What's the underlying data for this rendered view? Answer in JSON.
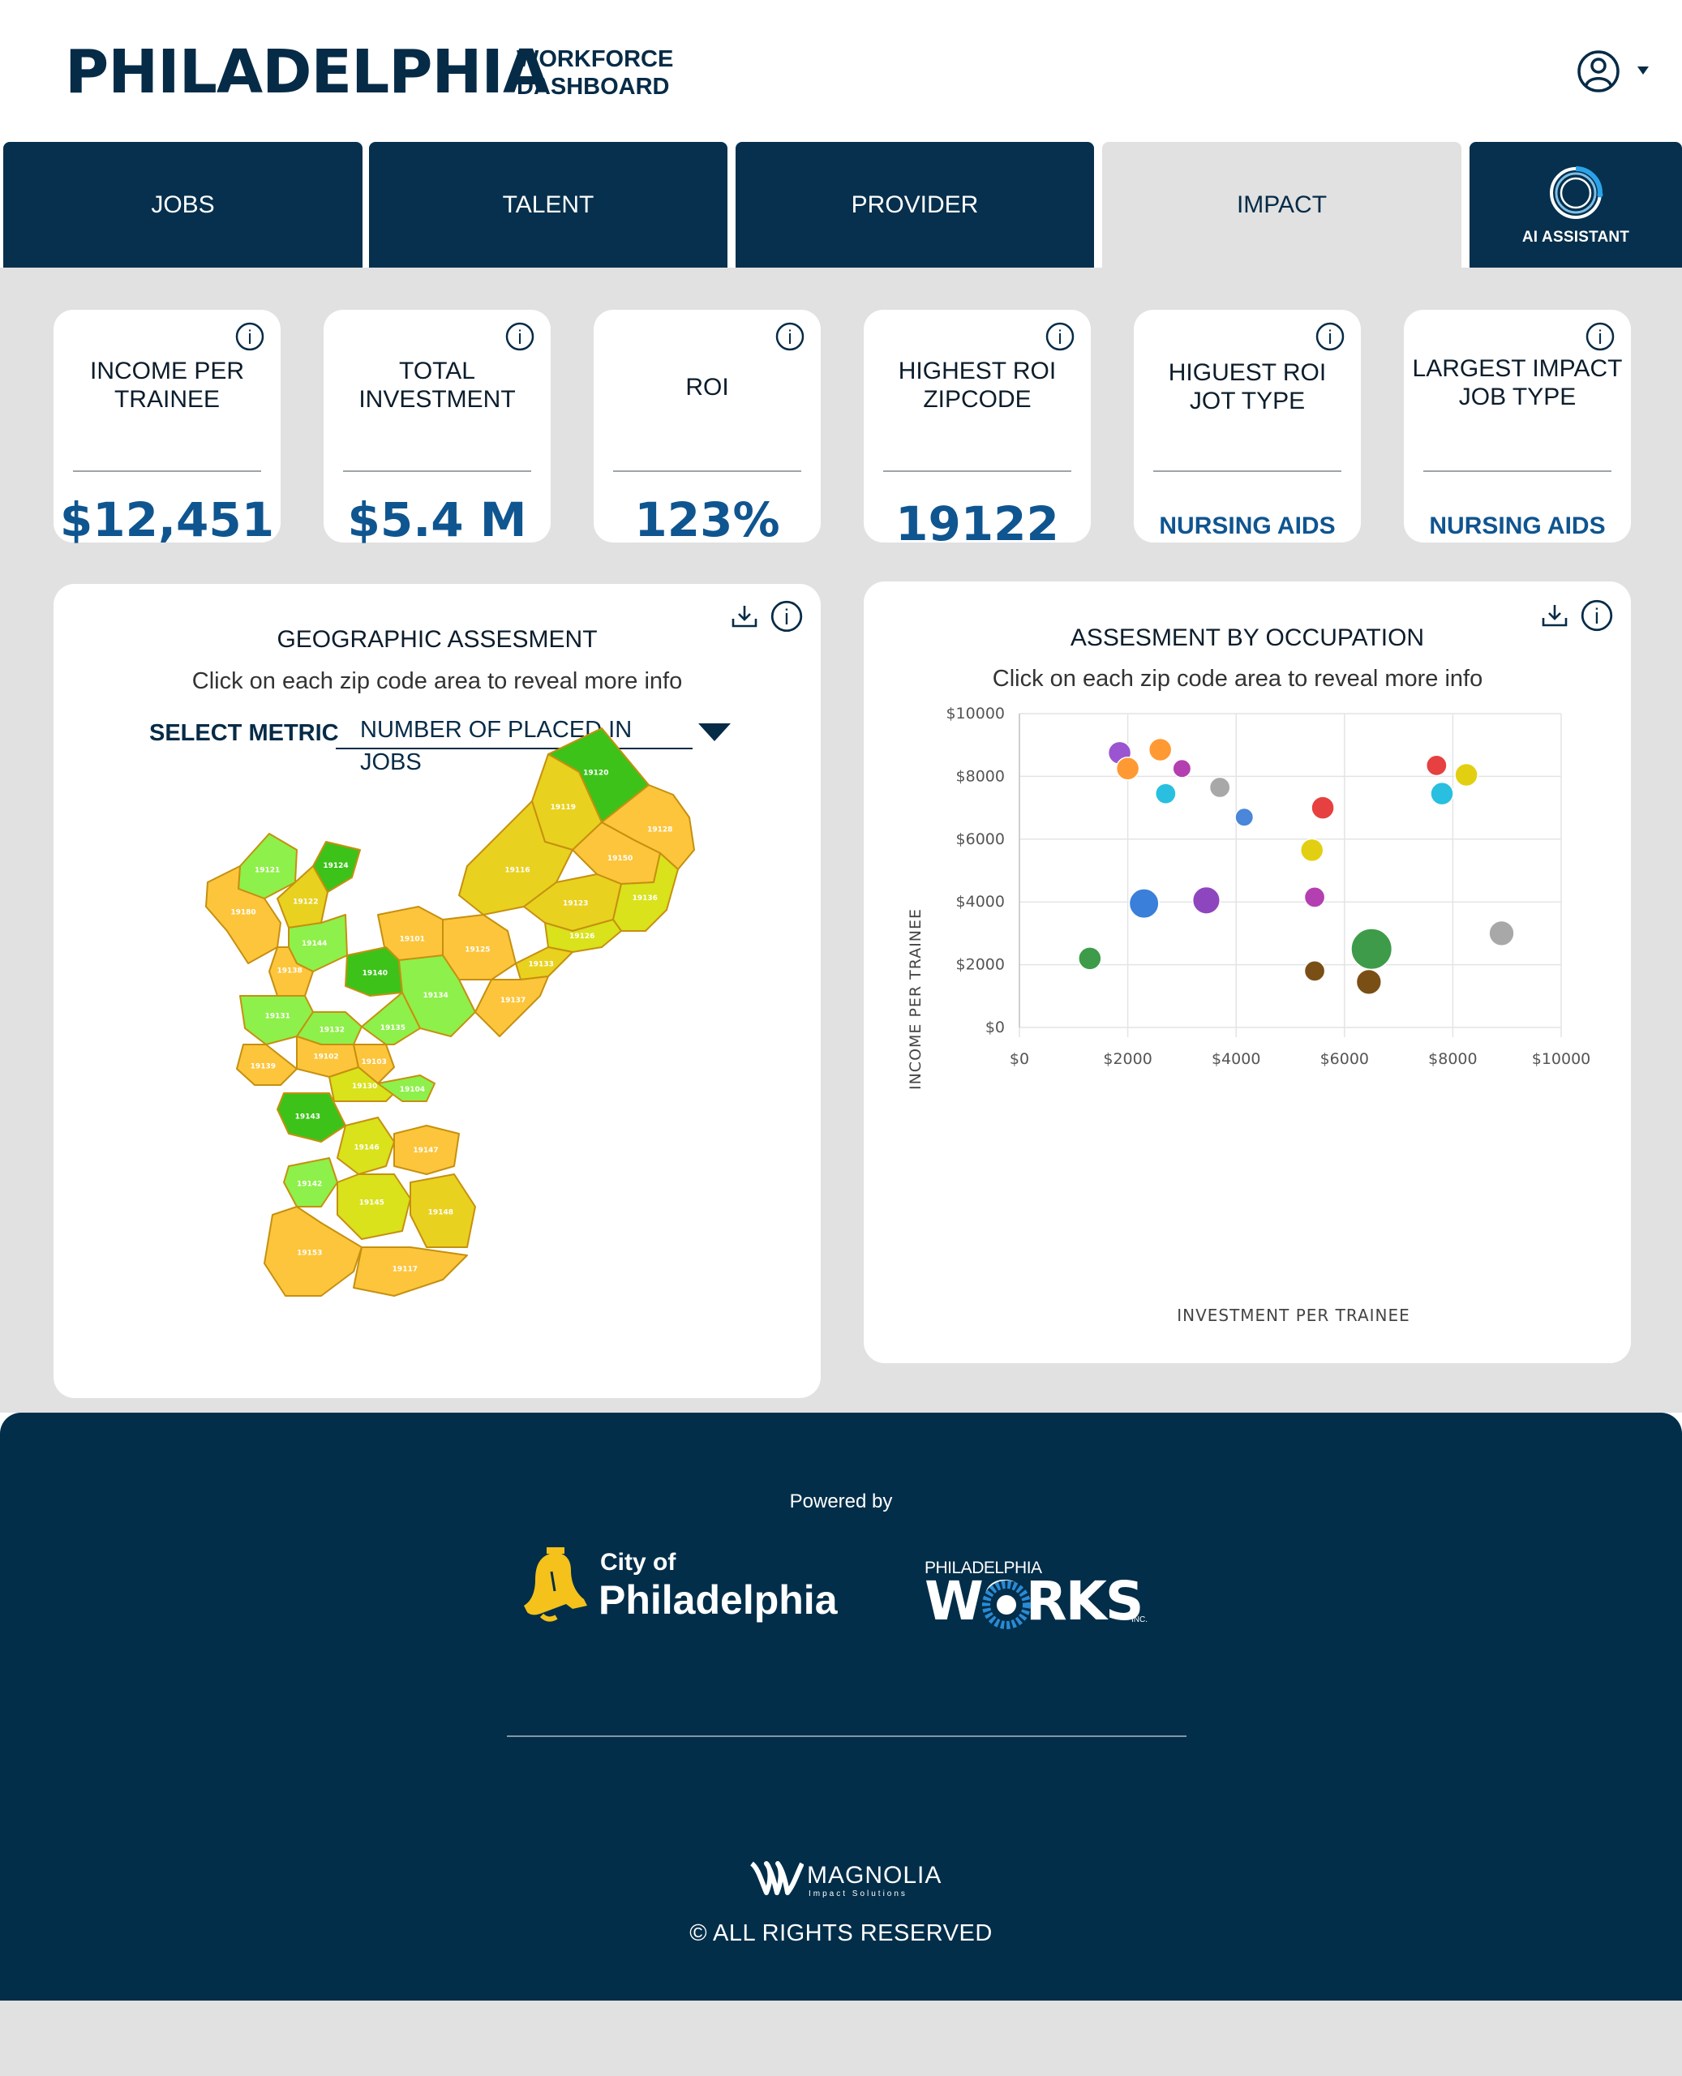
{
  "header": {
    "brand": "PHILADELPHIA",
    "subtitle_line1": "WORKFORCE",
    "subtitle_line2": "DASHBOARD",
    "user_icon": "user-circle-icon",
    "menu_icon": "caret-down-icon"
  },
  "tabs": [
    {
      "label": "JOBS",
      "active": false
    },
    {
      "label": "TALENT",
      "active": false
    },
    {
      "label": "PROVIDER",
      "active": false
    },
    {
      "label": "IMPACT",
      "active": true
    },
    {
      "label": "AI ASSISTANT",
      "icon": "ai-ring-icon",
      "active": false
    }
  ],
  "kpis": [
    {
      "label_line1": "INCOME PER",
      "label_line2": "TRAINEE",
      "value": "$12,451"
    },
    {
      "label_line1": "TOTAL",
      "label_line2": "INVESTMENT",
      "value": "$5.4 M"
    },
    {
      "label_line1": "ROI",
      "label_line2": "",
      "value": "123%"
    },
    {
      "label_line1": "HIGHEST ROI",
      "label_line2": "ZIPCODE",
      "value": "19122"
    },
    {
      "label_line1": "HIGUEST ROI",
      "label_line2": "JOT TYPE",
      "value": "NURSING AIDS"
    },
    {
      "label_line1": "LARGEST IMPACT",
      "label_line2": "JOB TYPE",
      "value": "NURSING AIDS"
    }
  ],
  "geo_panel": {
    "title": "GEOGRAPHIC ASSESMENT",
    "subtitle": "Click on each zip code area to reveal more info",
    "metric_label": "SELECT METRIC",
    "metric_value": "NUMBER OF PLACED IN JOBS",
    "zipcodes": [
      "19120",
      "19128",
      "19119",
      "19150",
      "19116",
      "19121",
      "19124",
      "19180",
      "19122",
      "19144",
      "19101",
      "19123",
      "19136",
      "19126",
      "19125",
      "19138",
      "19140",
      "19133",
      "19131",
      "19132",
      "19134",
      "19137",
      "19102",
      "19103",
      "19135",
      "19139",
      "19130",
      "19104",
      "19143",
      "19146",
      "19147",
      "19142",
      "19145",
      "19148",
      "19153",
      "19117"
    ],
    "colors": {
      "dark_green": "#3dc21a",
      "light_green": "#8ef04a",
      "yellow_green": "#d9e21b",
      "yellow": "#e9d11f",
      "orange": "#fcc53c",
      "border": "#c6900e"
    }
  },
  "occupation_panel": {
    "title": "ASSESMENT BY OCCUPATION",
    "subtitle": "Click on each zip code area to reveal more info"
  },
  "chart_data": {
    "type": "scatter",
    "xlabel": "INVESTMENT PER TRAINEE",
    "ylabel": "INCOME PER TRAINEE",
    "xlim": [
      0,
      10000
    ],
    "ylim": [
      0,
      10000
    ],
    "x_ticks": [
      "$0",
      "$2000",
      "$4000",
      "$6000",
      "$8000",
      "$10000"
    ],
    "y_ticks": [
      "$0",
      "$2000",
      "$4000",
      "$6000",
      "$8000",
      "$10000"
    ],
    "grid": true,
    "points": [
      {
        "x": 1850,
        "y": 8750,
        "size": 1,
        "color": "#9b55d0"
      },
      {
        "x": 2600,
        "y": 8850,
        "size": 1,
        "color": "#ff9933"
      },
      {
        "x": 2000,
        "y": 8250,
        "size": 1,
        "color": "#ff9933"
      },
      {
        "x": 3000,
        "y": 8250,
        "size": 0.8,
        "color": "#b43fb0"
      },
      {
        "x": 2700,
        "y": 7450,
        "size": 0.9,
        "color": "#29bfe0"
      },
      {
        "x": 3700,
        "y": 7650,
        "size": 0.9,
        "color": "#a8a8a8"
      },
      {
        "x": 5600,
        "y": 7000,
        "size": 1,
        "color": "#e64040"
      },
      {
        "x": 4150,
        "y": 6700,
        "size": 0.8,
        "color": "#4a86d9"
      },
      {
        "x": 5400,
        "y": 5650,
        "size": 1,
        "color": "#e3cf11"
      },
      {
        "x": 7700,
        "y": 8350,
        "size": 0.9,
        "color": "#e64040"
      },
      {
        "x": 8250,
        "y": 8050,
        "size": 1,
        "color": "#e3cf11"
      },
      {
        "x": 7800,
        "y": 7450,
        "size": 1,
        "color": "#29bfe0"
      },
      {
        "x": 2300,
        "y": 3950,
        "size": 1.3,
        "color": "#3a7fd9"
      },
      {
        "x": 3450,
        "y": 4050,
        "size": 1.2,
        "color": "#8e46be"
      },
      {
        "x": 5450,
        "y": 4150,
        "size": 0.9,
        "color": "#b43fb0"
      },
      {
        "x": 1300,
        "y": 2200,
        "size": 1,
        "color": "#3e9b4a"
      },
      {
        "x": 6500,
        "y": 2500,
        "size": 1.8,
        "color": "#3e9b4a"
      },
      {
        "x": 5450,
        "y": 1800,
        "size": 0.9,
        "color": "#7a4f16"
      },
      {
        "x": 6450,
        "y": 1450,
        "size": 1.1,
        "color": "#7a4f16"
      },
      {
        "x": 8900,
        "y": 3000,
        "size": 1.1,
        "color": "#a8a8a8"
      }
    ]
  },
  "footer": {
    "powered_by": "Powered by",
    "city_logo_line1": "City of",
    "city_logo_line2": "Philadelphia",
    "works_logo_small": "PHILADELPHIA",
    "works_logo_main": "WORKS",
    "works_logo_inc": "INC.",
    "magnolia_logo": "MAGNOLIA",
    "magnolia_sub": "Impact Solutions",
    "rights": "© ALL RIGHTS RESERVED"
  }
}
